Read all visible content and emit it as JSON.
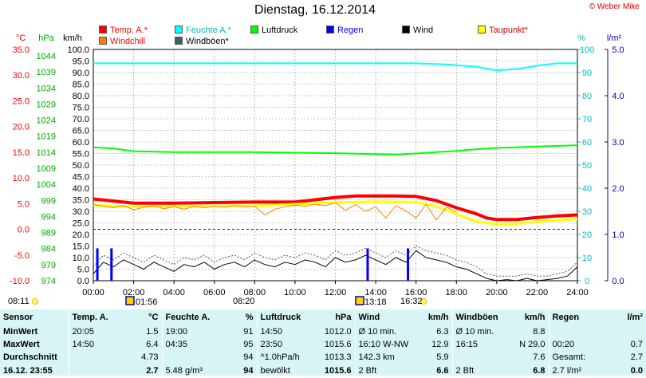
{
  "title": "Dienstag, 16.12.2014",
  "copyright": "© Weber Mike",
  "legend": [
    {
      "label": "Temp. A.*",
      "color": "#ff0000"
    },
    {
      "label": "Feuchte A.*",
      "color": "#00ffff"
    },
    {
      "label": "Luftdruck",
      "color": "#00ff00"
    },
    {
      "label": "Regen",
      "color": "#0000ff"
    },
    {
      "label": "Wind",
      "color": "#000000"
    },
    {
      "label": "Taupunkt*",
      "color": "#ffff00"
    },
    {
      "label": "Windchill",
      "color": "#ff8000"
    },
    {
      "label": "Windböen*",
      "color": "#406060"
    }
  ],
  "axis_units": {
    "temp": "°C",
    "press": "hPa",
    "wind": "km/h",
    "hum": "%",
    "rain": "l/m²"
  },
  "chart_data": {
    "type": "line",
    "x_ticks": [
      "00:00",
      "02:00",
      "04:00",
      "06:00",
      "08:00",
      "10:00",
      "12:00",
      "14:00",
      "16:00",
      "18:00",
      "20:00",
      "22:00",
      "24:00"
    ],
    "temp_ticks": [
      "35.0",
      "30.0",
      "25.0",
      "20.0",
      "15.0",
      "10.0",
      "5.0",
      "0.0",
      "-5.0",
      "-10.0"
    ],
    "press_ticks": [
      "1044",
      "1039",
      "1034",
      "1029",
      "1024",
      "1019",
      "1014",
      "1009",
      "1004",
      "999",
      "994",
      "989",
      "984",
      "979",
      "974"
    ],
    "wind_ticks": [
      "100.0",
      "95.0",
      "90.0",
      "85.0",
      "80.0",
      "75.0",
      "70.0",
      "65.0",
      "60.0",
      "55.0",
      "50.0",
      "45.0",
      "40.0",
      "35.0",
      "30.0",
      "25.0",
      "20.0",
      "15.0",
      "10.0",
      "5.0",
      "0.0"
    ],
    "hum_ticks": [
      "100",
      "90",
      "80",
      "70",
      "60",
      "50",
      "40",
      "30",
      "20",
      "10",
      "0"
    ],
    "rain_ticks": [
      "5.0",
      "4.0",
      "3.0",
      "2.0",
      "1.0",
      "0.0"
    ],
    "temp_range": [
      -10,
      35
    ],
    "press_range": [
      974,
      1044
    ],
    "wind_range": [
      0,
      100
    ],
    "hum_range": [
      0,
      100
    ],
    "rain_range": [
      0,
      5
    ],
    "series": [
      {
        "name": "Feuchte A.*",
        "color": "#00ffff",
        "axis": "hum",
        "x": [
          0,
          4,
          8,
          12,
          14.5,
          16,
          17.5,
          19,
          20,
          21,
          22,
          23,
          24
        ],
        "y": [
          94,
          94,
          94,
          94,
          94,
          94,
          93.5,
          92.5,
          91,
          91.5,
          93,
          94,
          94
        ]
      },
      {
        "name": "Luftdruck",
        "color": "#00ff00",
        "axis": "press",
        "x": [
          0,
          1,
          2,
          4,
          8,
          12,
          14,
          15,
          16,
          17,
          18,
          19,
          20,
          22,
          24
        ],
        "y": [
          1014.4,
          1014.0,
          1013.2,
          1012.9,
          1012.9,
          1012.6,
          1012.3,
          1012.2,
          1012.5,
          1012.9,
          1013.3,
          1013.8,
          1014.2,
          1014.6,
          1015.0
        ]
      },
      {
        "name": "Temp. A.*",
        "color": "#ff0000",
        "axis": "temp",
        "x": [
          0,
          1,
          2,
          3,
          4,
          6,
          8,
          10,
          12,
          13,
          14,
          15,
          16,
          17,
          18,
          19,
          19.5,
          20,
          21,
          22,
          23,
          24
        ],
        "y": [
          5.9,
          5.5,
          5.1,
          5.1,
          5.1,
          5.2,
          5.3,
          5.3,
          6.2,
          6.5,
          6.5,
          6.5,
          6.4,
          5.6,
          4.2,
          3.0,
          2.2,
          1.9,
          1.9,
          2.3,
          2.6,
          2.8
        ]
      },
      {
        "name": "Taupunkt*",
        "color": "#ffff00",
        "axis": "temp",
        "x": [
          0,
          2,
          4,
          8,
          12,
          14,
          16,
          17,
          18,
          19,
          20,
          21,
          22,
          23,
          24
        ],
        "y": [
          4.7,
          4.4,
          4.5,
          4.6,
          5.2,
          5.4,
          5.3,
          4.5,
          3.0,
          1.5,
          1.0,
          1.1,
          1.5,
          1.8,
          2.0
        ]
      },
      {
        "name": "Windchill",
        "color": "#ff8000",
        "axis": "temp",
        "x": [
          0,
          0.5,
          1,
          1.5,
          2,
          2.5,
          3,
          3.5,
          4,
          4.5,
          5,
          5.5,
          6,
          6.5,
          7,
          7.5,
          8,
          8.5,
          9,
          9.5,
          10,
          10.5,
          11,
          11.5,
          12,
          12.5,
          13,
          13.5,
          14,
          14.5,
          15,
          15.5,
          16,
          16.5,
          17,
          17.5,
          18
        ],
        "y": [
          4.8,
          4.5,
          4.2,
          4.6,
          3.8,
          4.3,
          4.6,
          4.0,
          4.4,
          3.9,
          4.5,
          4.2,
          4.5,
          4.3,
          4.6,
          4.4,
          4.5,
          2.8,
          3.9,
          4.4,
          4.7,
          4.5,
          4.9,
          4.6,
          5.2,
          3.7,
          4.8,
          3.5,
          4.4,
          2.2,
          4.6,
          3.6,
          2.2,
          4.9,
          1.8,
          4.3,
          3.4
        ]
      },
      {
        "name": "Wind",
        "color": "#000000",
        "axis": "wind",
        "x": [
          0,
          0.5,
          1,
          1.5,
          2,
          2.5,
          3,
          3.5,
          4,
          4.5,
          5,
          5.5,
          6,
          6.5,
          7,
          7.5,
          8,
          8.5,
          9,
          9.5,
          10,
          10.5,
          11,
          11.5,
          12,
          12.5,
          13,
          13.5,
          14,
          14.5,
          15,
          15.5,
          16,
          16.5,
          17,
          17.5,
          18,
          18.5,
          19,
          19.5,
          20,
          20.5,
          21,
          21.5,
          22,
          22.5,
          23,
          23.5,
          24
        ],
        "y": [
          3,
          8,
          6,
          9,
          7,
          5,
          8,
          6,
          4,
          7,
          6,
          8,
          5,
          7,
          8,
          6,
          9,
          7,
          6,
          8,
          7,
          9,
          8,
          6,
          10,
          8,
          9,
          11,
          9,
          7,
          10,
          8,
          13,
          10,
          9,
          8,
          6,
          5,
          3,
          1,
          0,
          0.5,
          0,
          1,
          0,
          0.5,
          1,
          2,
          6
        ]
      },
      {
        "name": "Windböen*",
        "color": "#406060",
        "axis": "wind",
        "x": [
          0,
          0.5,
          1,
          1.5,
          2,
          2.5,
          3,
          3.5,
          4,
          4.5,
          5,
          5.5,
          6,
          6.5,
          7,
          7.5,
          8,
          8.5,
          9,
          9.5,
          10,
          10.5,
          11,
          11.5,
          12,
          12.5,
          13,
          13.5,
          14,
          14.5,
          15,
          15.5,
          16,
          16.5,
          17,
          17.5,
          18,
          18.5,
          19,
          19.5,
          20,
          20.5,
          21,
          21.5,
          22,
          22.5,
          23,
          23.5,
          24
        ],
        "y": [
          6,
          11,
          9,
          12,
          10,
          8,
          11,
          9,
          7,
          10,
          9,
          11,
          8,
          10,
          11,
          9,
          12,
          10,
          9,
          11,
          10,
          12,
          11,
          9,
          13,
          11,
          12,
          14,
          12,
          10,
          13,
          11,
          15,
          13,
          12,
          11,
          9,
          8,
          6,
          3,
          2,
          2,
          2,
          3,
          2,
          2,
          3,
          4,
          8
        ]
      },
      {
        "name": "Regen",
        "color": "#0000ff",
        "axis": "rain",
        "type": "bar",
        "x": [
          0.2,
          0.9,
          13.6,
          15.6
        ],
        "y": [
          0.7,
          0.7,
          0.7,
          0.7
        ]
      }
    ],
    "reference_line": {
      "axis": "temp",
      "value": 0,
      "color": "#0000ff"
    }
  },
  "markers": {
    "sunrise": "08:11",
    "sunset": "16:32",
    "moonrise": "01:56",
    "moonset": "13:18",
    "x_tick_extra": "08:20"
  },
  "table": {
    "headers": [
      "Sensor",
      "Temp. A.",
      "°C",
      "Feuchte A.",
      "%",
      "Luftdruck",
      "hPa",
      "Wind",
      "km/h",
      "Windböen",
      "km/h",
      "Regen",
      "l/m²"
    ],
    "rows": [
      [
        "MinWert",
        "20:05",
        "1.5",
        "19:00",
        "91",
        "14:50",
        "1012.0",
        "Ø 10 min.",
        "6.3",
        "Ø 10 min.",
        "8.8",
        "",
        ""
      ],
      [
        "MaxWert",
        "14:50",
        "6.4",
        "04:35",
        "95",
        "23:50",
        "1015.6",
        "16:10   W-NW",
        "12.9",
        "16:15",
        "N 29.0",
        "00:20",
        "0.7"
      ],
      [
        "Durchschnitt",
        "",
        "4.73",
        "",
        "94",
        "^1.0hPa/h",
        "1013.3",
        "142.3 km",
        "5.9",
        "",
        "7.6",
        "Gesamt:",
        "2.7"
      ],
      [
        "16.12. 23:55",
        "",
        "2.7",
        "5.48 g/m³",
        "94",
        "bewölkt",
        "1015.6",
        "2 Bft",
        "6.6",
        "2 Bft",
        "6.8",
        "2.7 l/m²",
        "0.0"
      ]
    ]
  }
}
